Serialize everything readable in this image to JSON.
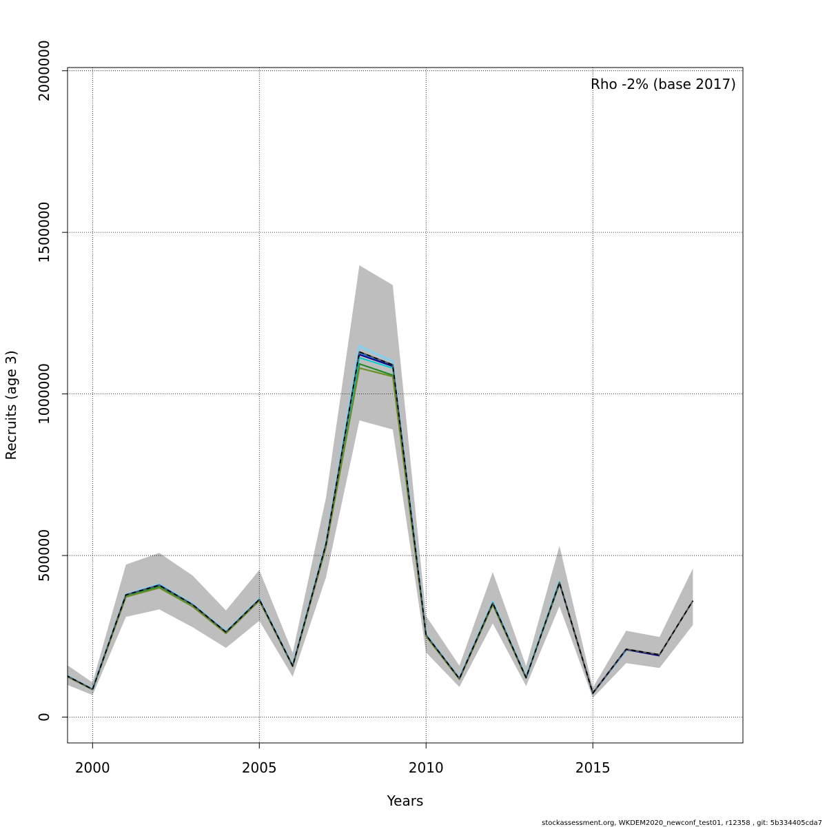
{
  "chart_data": {
    "type": "line",
    "xlabel": "Years",
    "ylabel": "Recruits (age 3)",
    "xlim": [
      1999.25,
      2019.5
    ],
    "ylim": [
      -80000,
      2010000
    ],
    "x_ticks": [
      2000,
      2005,
      2010,
      2015
    ],
    "y_ticks": [
      0,
      500000,
      1000000,
      1500000,
      2000000
    ],
    "x_tick_labels": [
      "2000",
      "2005",
      "2010",
      "2015"
    ],
    "y_tick_labels": [
      "0",
      "500000",
      "1000000",
      "1500000",
      "2000000"
    ],
    "grid": true,
    "legend_text": "Rho -2% (base 2017)",
    "legend_position": "top-right",
    "footer": "stockassessment.org, WKDEM2020_newconf_test01, r12358 , git: 5b334405cda7",
    "confidence_band": {
      "color": "#bebebe",
      "x": [
        1999,
        2000,
        2001,
        2002,
        2003,
        2004,
        2005,
        2006,
        2007,
        2008,
        2009,
        2010,
        2011,
        2012,
        2013,
        2014,
        2015,
        2016,
        2017,
        2018
      ],
      "lower": [
        110000,
        68000,
        310000,
        333000,
        278000,
        214000,
        298000,
        125000,
        433000,
        918000,
        890000,
        200000,
        93000,
        290000,
        96000,
        343000,
        59000,
        167000,
        152000,
        285000
      ],
      "upper": [
        178000,
        107000,
        472000,
        508000,
        438000,
        330000,
        455000,
        199000,
        680000,
        1398000,
        1337000,
        313000,
        159000,
        449000,
        158000,
        530000,
        91000,
        267000,
        248000,
        460000
      ]
    },
    "series": [
      {
        "color": "#228b22",
        "width": 2.2,
        "x": [
          1999,
          2000,
          2001,
          2002,
          2003,
          2004,
          2005,
          2006,
          2007,
          2008,
          2009,
          2010,
          2011,
          2012,
          2013,
          2014
        ],
        "values": [
          140000,
          86000,
          374000,
          404000,
          345000,
          261000,
          363000,
          158000,
          531000,
          1093000,
          1058000,
          252000,
          118000,
          350000,
          121000,
          412000
        ]
      },
      {
        "color": "#00008b",
        "width": 2.2,
        "x": [
          1999,
          2000,
          2001,
          2002,
          2003,
          2004,
          2005,
          2006,
          2007,
          2008,
          2009,
          2010,
          2011,
          2012,
          2013,
          2014,
          2015,
          2016,
          2017
        ],
        "values": [
          140000,
          86000,
          378000,
          408000,
          348000,
          263000,
          364000,
          158000,
          536000,
          1122000,
          1086000,
          254000,
          119000,
          353000,
          122000,
          416000,
          74000,
          209000,
          190000
        ]
      },
      {
        "color": "#87ceeb",
        "width": 3.5,
        "x": [
          1999,
          2000,
          2001,
          2002,
          2003,
          2004,
          2005,
          2006,
          2007,
          2008,
          2009,
          2010,
          2011,
          2012,
          2013,
          2014
        ],
        "values": [
          141000,
          86000,
          379000,
          410000,
          350000,
          265000,
          366000,
          159000,
          540000,
          1148000,
          1100000,
          256000,
          120000,
          357000,
          123000,
          420000
        ]
      },
      {
        "color": "#1e90ff",
        "width": 1.5,
        "x": [
          1999,
          2000,
          2001,
          2002,
          2003,
          2004,
          2005,
          2006,
          2007,
          2008,
          2009,
          2010,
          2011,
          2012,
          2013,
          2014,
          2015,
          2016
        ],
        "values": [
          140000,
          86000,
          379000,
          410000,
          349000,
          264000,
          365000,
          158000,
          538000,
          1126000,
          1090000,
          255000,
          119000,
          355000,
          122000,
          417000,
          72000,
          206000
        ]
      },
      {
        "color": "#00ced1",
        "width": 2,
        "x": [
          1999,
          2000,
          2001,
          2002,
          2003,
          2004,
          2005,
          2006,
          2007,
          2008,
          2009,
          2010,
          2011,
          2012,
          2013,
          2014,
          2015
        ],
        "values": [
          140000,
          86000,
          377000,
          407000,
          347000,
          263000,
          364000,
          158000,
          535000,
          1112000,
          1080000,
          253000,
          119000,
          354000,
          122000,
          418000,
          73000
        ]
      },
      {
        "color": "#6b8e23",
        "width": 2.2,
        "x": [
          1999,
          2000,
          2001,
          2002,
          2003,
          2004,
          2005,
          2006,
          2007,
          2008,
          2009,
          2010,
          2011,
          2012,
          2013
        ],
        "values": [
          138000,
          85000,
          372000,
          400000,
          342000,
          259000,
          360000,
          157000,
          527000,
          1080000,
          1054000,
          250000,
          117000,
          348000,
          120000
        ]
      },
      {
        "color": "#555555",
        "width": 2.2,
        "x": [
          1999,
          2000,
          2001,
          2002,
          2003,
          2004,
          2005,
          2006,
          2007,
          2008,
          2009,
          2010,
          2011,
          2012,
          2013,
          2014,
          2015,
          2016,
          2017,
          2018
        ],
        "values": [
          140000,
          86000,
          378000,
          408000,
          348000,
          263000,
          364000,
          158000,
          536000,
          1130000,
          1090000,
          254000,
          119000,
          353000,
          122000,
          416000,
          74000,
          210000,
          193000,
          360000
        ]
      },
      {
        "color": "#000000",
        "width": 1.8,
        "dash": "6,5",
        "x": [
          1999,
          2000,
          2001,
          2002,
          2003,
          2004,
          2005,
          2006,
          2007,
          2008,
          2009,
          2010,
          2011,
          2012,
          2013,
          2014,
          2015,
          2016,
          2017,
          2018
        ],
        "values": [
          140000,
          86000,
          378000,
          408000,
          348000,
          263000,
          364000,
          158000,
          536000,
          1130000,
          1090000,
          254000,
          119000,
          353000,
          122000,
          416000,
          74000,
          210000,
          193000,
          360000
        ]
      }
    ]
  }
}
